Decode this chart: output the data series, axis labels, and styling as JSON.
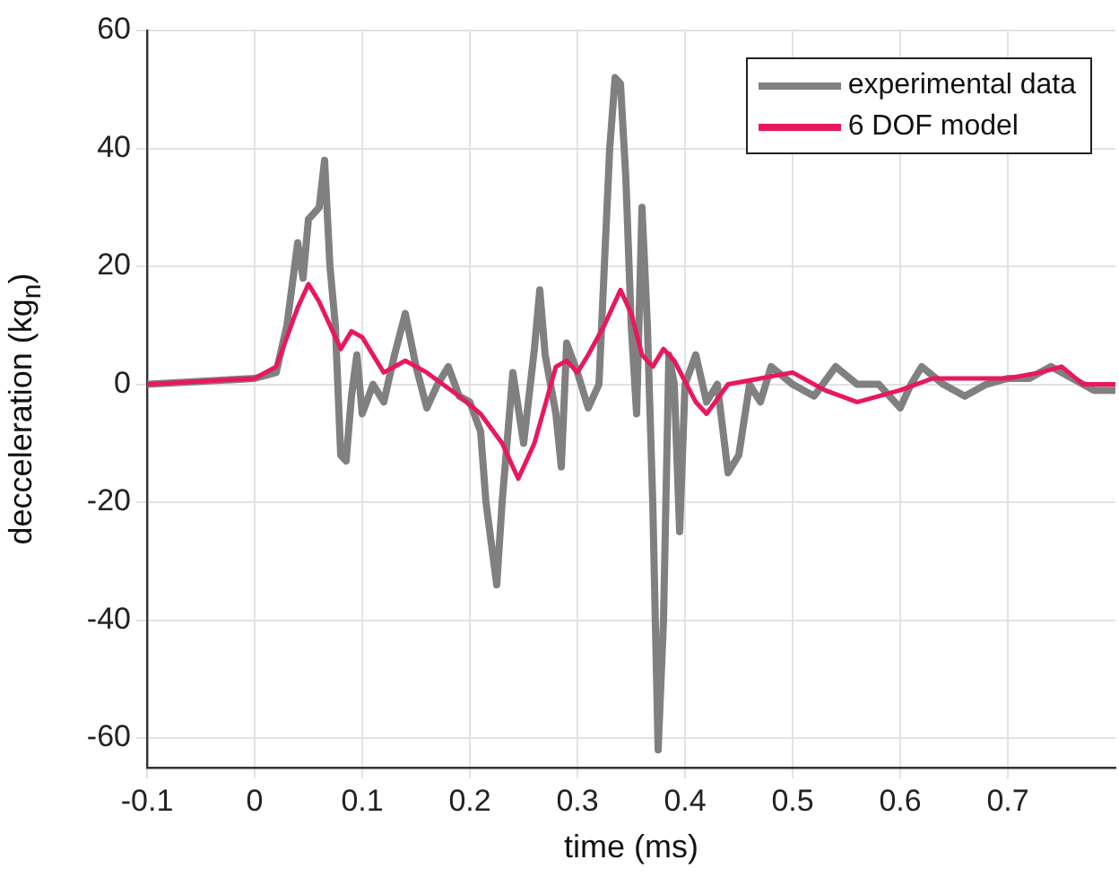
{
  "chart_data": {
    "type": "line",
    "xlabel": "time (ms)",
    "ylabel": "decceleration (kg$_{n}$)",
    "xlim": [
      -0.1,
      0.8
    ],
    "xticks": [
      -0.1,
      0,
      0.1,
      0.2,
      0.3,
      0.4,
      0.5,
      0.6,
      0.7
    ],
    "ylim": [
      -65,
      60
    ],
    "yticks": [
      -60,
      -40,
      -20,
      0,
      20,
      40,
      60
    ],
    "grid": true,
    "legend": "top right",
    "marker": "none",
    "line_style": "solid",
    "series": [
      {
        "name": "experimental data",
        "color": "#808080",
        "x": [
          -0.1,
          -0.05,
          0,
          0.02,
          0.03,
          0.04,
          0.045,
          0.05,
          0.06,
          0.065,
          0.07,
          0.075,
          0.08,
          0.085,
          0.09,
          0.095,
          0.1,
          0.11,
          0.12,
          0.13,
          0.14,
          0.15,
          0.16,
          0.17,
          0.18,
          0.19,
          0.2,
          0.21,
          0.215,
          0.225,
          0.23,
          0.24,
          0.25,
          0.26,
          0.265,
          0.27,
          0.28,
          0.285,
          0.29,
          0.3,
          0.31,
          0.32,
          0.33,
          0.335,
          0.34,
          0.345,
          0.35,
          0.355,
          0.36,
          0.365,
          0.37,
          0.375,
          0.38,
          0.385,
          0.39,
          0.395,
          0.4,
          0.41,
          0.42,
          0.43,
          0.44,
          0.45,
          0.46,
          0.47,
          0.48,
          0.5,
          0.52,
          0.54,
          0.56,
          0.58,
          0.6,
          0.61,
          0.62,
          0.64,
          0.66,
          0.68,
          0.7,
          0.72,
          0.74,
          0.76,
          0.78,
          0.8
        ],
        "values": [
          0,
          0.5,
          1,
          2,
          10,
          24,
          18,
          28,
          30,
          38,
          20,
          10,
          -12,
          -13,
          -2,
          5,
          -5,
          0,
          -3,
          5,
          12,
          3,
          -4,
          0,
          3,
          -2,
          -3,
          -8,
          -20,
          -34,
          -20,
          2,
          -10,
          6,
          16,
          5,
          -5,
          -14,
          7,
          2,
          -4,
          0,
          40,
          52,
          51,
          35,
          10,
          -5,
          30,
          10,
          -20,
          -62,
          -40,
          5,
          0,
          -25,
          0,
          5,
          -3,
          0,
          -15,
          -12,
          0,
          -3,
          3,
          0,
          -2,
          3,
          0,
          0,
          -4,
          0,
          3,
          0,
          -2,
          0,
          1,
          1,
          3,
          1,
          -1,
          -1
        ]
      },
      {
        "name": "6 DOF model",
        "color": "#e8185f",
        "x": [
          -0.1,
          0,
          0.02,
          0.04,
          0.05,
          0.06,
          0.07,
          0.08,
          0.09,
          0.1,
          0.12,
          0.14,
          0.16,
          0.19,
          0.21,
          0.23,
          0.245,
          0.26,
          0.28,
          0.29,
          0.3,
          0.31,
          0.325,
          0.34,
          0.35,
          0.36,
          0.37,
          0.38,
          0.39,
          0.41,
          0.42,
          0.44,
          0.47,
          0.5,
          0.53,
          0.56,
          0.6,
          0.63,
          0.66,
          0.7,
          0.73,
          0.75,
          0.77,
          0.8
        ],
        "values": [
          0,
          1,
          3,
          13,
          17,
          14,
          10,
          6,
          9,
          8,
          2,
          4,
          2,
          -2,
          -5,
          -10,
          -16,
          -10,
          3,
          4,
          2,
          5,
          10,
          16,
          12,
          5,
          3,
          6,
          4,
          -3,
          -5,
          0,
          1,
          2,
          -1,
          -3,
          -1,
          1,
          1,
          1,
          2,
          3,
          0,
          0
        ]
      }
    ]
  }
}
